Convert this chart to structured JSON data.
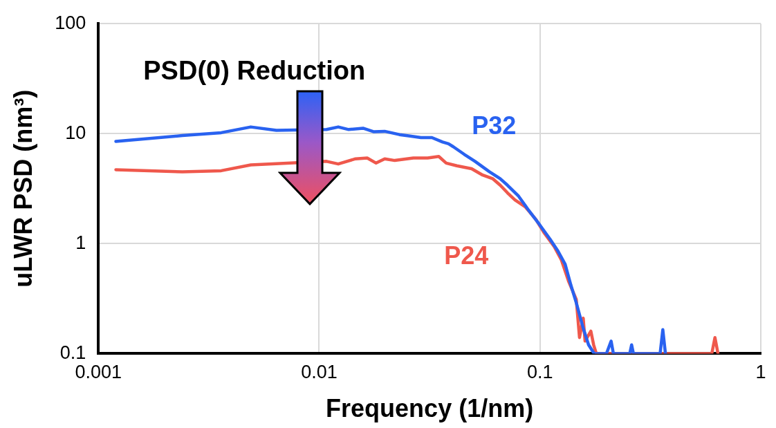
{
  "chart_data": {
    "type": "line",
    "xlabel": "Frequency (1/nm)",
    "ylabel": "uLWR PSD (nm³)",
    "annotations": [
      "PSD(0) Reduction"
    ],
    "log": "xy",
    "grid": true,
    "legend": false,
    "marker": "none",
    "line_style": "solid",
    "xlim": [
      0.001,
      1
    ],
    "ylim": [
      0.1,
      100
    ],
    "xticks": [
      0.001,
      0.01,
      0.1,
      1
    ],
    "yticks": [
      0.1,
      1,
      10,
      100
    ],
    "series": [
      {
        "name": "P32",
        "color": "#2962f0",
        "x": [
          0.0012,
          0.0024,
          0.0036,
          0.0049,
          0.0064,
          0.0108,
          0.0122,
          0.0136,
          0.0158,
          0.0177,
          0.0198,
          0.0231,
          0.0258,
          0.0289,
          0.0324,
          0.0362,
          0.0385,
          0.0405,
          0.0453,
          0.0508,
          0.059,
          0.066,
          0.0712,
          0.08,
          0.089,
          0.1,
          0.111,
          0.12,
          0.13,
          0.138,
          0.146,
          0.157,
          0.166,
          0.176,
          0.2,
          0.21,
          0.215,
          0.255,
          0.26,
          0.265,
          0.35,
          0.36,
          0.37
        ],
        "values": [
          8.5,
          9.6,
          10.2,
          11.5,
          10.7,
          10.9,
          11.5,
          10.9,
          11.2,
          10.4,
          10.5,
          9.8,
          9.5,
          9.2,
          9.2,
          8.4,
          8.1,
          7.6,
          6.5,
          5.6,
          4.5,
          3.9,
          3.4,
          2.7,
          2.0,
          1.47,
          1.1,
          0.87,
          0.65,
          0.42,
          0.29,
          0.17,
          0.12,
          0.1,
          0.1,
          0.13,
          0.1,
          0.1,
          0.12,
          0.1,
          0.1,
          0.165,
          0.1
        ]
      },
      {
        "name": "P24",
        "color": "#ef584c",
        "x": [
          0.0012,
          0.0024,
          0.0036,
          0.0049,
          0.0108,
          0.0122,
          0.0146,
          0.0165,
          0.0181,
          0.0198,
          0.022,
          0.0267,
          0.031,
          0.0348,
          0.0376,
          0.042,
          0.049,
          0.055,
          0.061,
          0.066,
          0.0712,
          0.077,
          0.086,
          0.096,
          0.104,
          0.116,
          0.125,
          0.135,
          0.146,
          0.151,
          0.157,
          0.16,
          0.17,
          0.175,
          0.18,
          0.6,
          0.62,
          0.64
        ],
        "values": [
          4.7,
          4.5,
          4.6,
          5.2,
          5.6,
          5.3,
          5.9,
          6.0,
          5.4,
          5.9,
          5.7,
          6.0,
          6.0,
          6.2,
          5.4,
          5.1,
          4.8,
          4.2,
          3.9,
          3.4,
          2.9,
          2.5,
          2.15,
          1.65,
          1.27,
          0.94,
          0.71,
          0.45,
          0.31,
          0.14,
          0.21,
          0.13,
          0.16,
          0.12,
          0.1,
          0.1,
          0.14,
          0.1
        ]
      }
    ]
  }
}
